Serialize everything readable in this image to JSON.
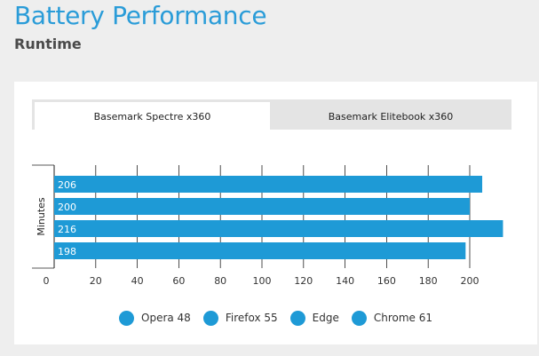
{
  "header": {
    "title": "Battery Performance",
    "subtitle": "Runtime"
  },
  "tabs": [
    {
      "label": "Basemark Spectre x360",
      "active": true
    },
    {
      "label": "Basemark Elitebook x360",
      "active": false
    }
  ],
  "colors": {
    "bar": "#1e9ad6",
    "title": "#2a9cd8"
  },
  "chart_data": {
    "type": "bar",
    "orientation": "horizontal",
    "categories": [
      "Opera 48",
      "Firefox 55",
      "Edge",
      "Chrome 61"
    ],
    "values": [
      206,
      200,
      216,
      198
    ],
    "ylabel": "Minutes",
    "xlim": [
      0,
      220
    ],
    "xticks": [
      0,
      20,
      40,
      60,
      80,
      100,
      120,
      140,
      160,
      180,
      200
    ],
    "grid": true,
    "legend": [
      "Opera 48",
      "Firefox 55",
      "Edge",
      "Chrome 61"
    ],
    "legend_position": "bottom"
  }
}
